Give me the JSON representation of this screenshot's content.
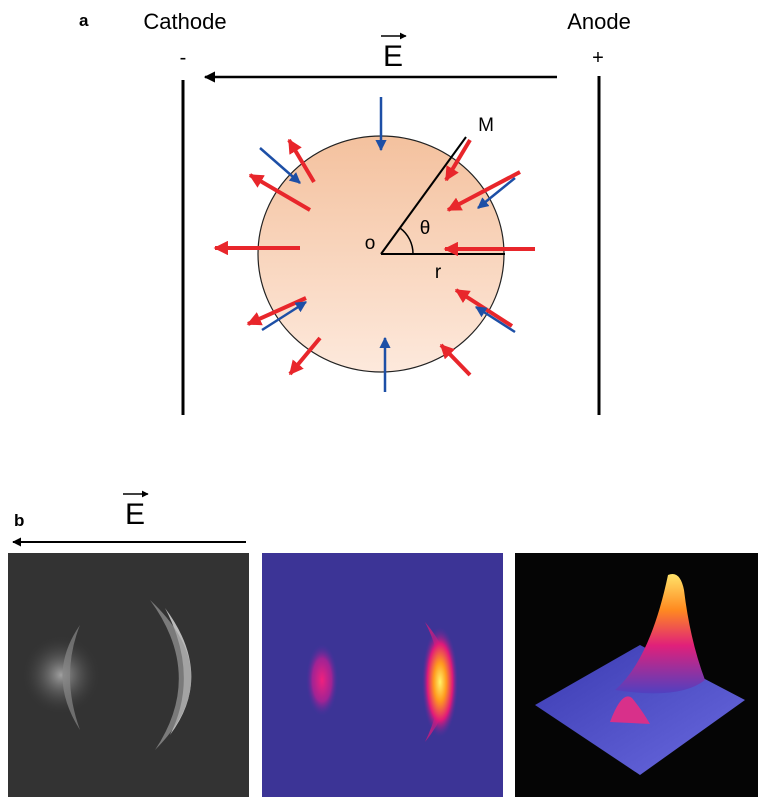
{
  "panel_a": {
    "label": "a",
    "cathode": "Cathode",
    "anode": "Anode",
    "field": "E",
    "cathode_sign": "-",
    "anode_sign": "+",
    "point_m": "M",
    "origin": "o",
    "angle": "θ",
    "radius": "r"
  },
  "panel_b": {
    "label": "b",
    "field": "E"
  }
}
